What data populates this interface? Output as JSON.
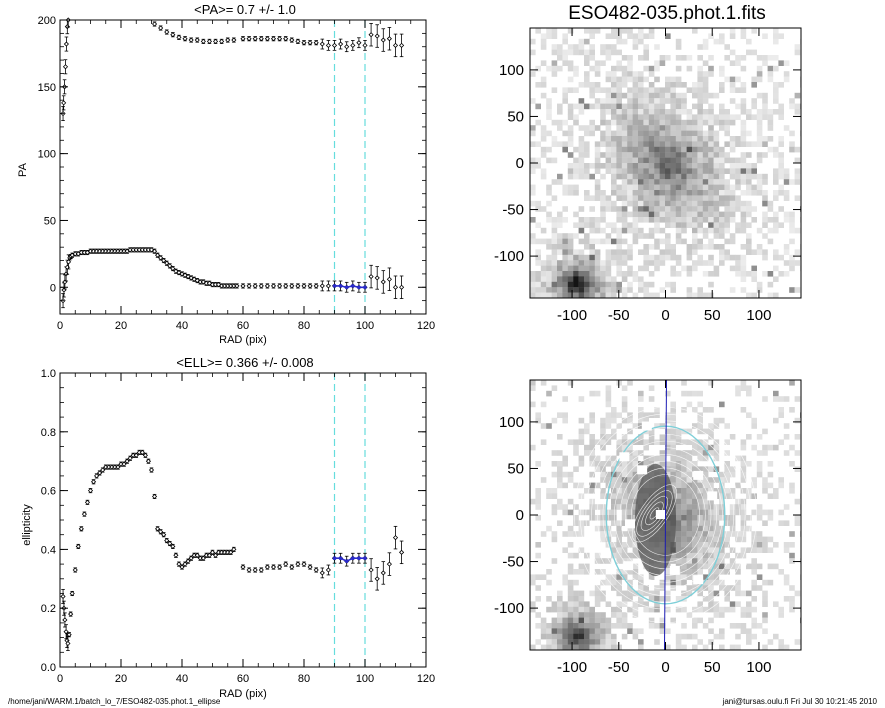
{
  "footer": {
    "path": "/home/jani/WARM.1/batch_lo_7/ESO482-035.phot.1_ellipse",
    "user_time": "jani@tursas.oulu.fi  Fri Jul 30 10:21:45 2010"
  },
  "colors": {
    "data": "#000000",
    "fit": "#2a2acc",
    "guide": "#66dddd",
    "ellipse": "#7ecfd8",
    "axis_line": "#1a1ab4"
  },
  "chart_data": [
    {
      "type": "scatter",
      "title": "<PA>=   0.7 +/-   1.0",
      "xlabel": "RAD (pix)",
      "ylabel": "PA",
      "xlim": [
        0,
        120
      ],
      "ylim": [
        -20,
        200
      ],
      "xticks": [
        "0",
        "20",
        "40",
        "60",
        "80",
        "100",
        "120"
      ],
      "yticks": [
        "0",
        "50",
        "100",
        "150",
        "200"
      ],
      "vlines": [
        90,
        100
      ],
      "series": [
        {
          "values": [
            [
              1.0,
              130
            ],
            [
              1.2,
              138
            ],
            [
              1.5,
              150
            ],
            [
              1.8,
              165
            ],
            [
              2.1,
              182
            ],
            [
              2.4,
              195
            ],
            [
              2.7,
              200
            ],
            [
              1.0,
              -10
            ],
            [
              1.3,
              -2
            ],
            [
              1.6,
              4
            ],
            [
              2.0,
              10
            ],
            [
              2.4,
              15
            ],
            [
              2.8,
              19
            ],
            [
              3.2,
              22
            ],
            [
              3.6,
              23
            ],
            [
              4,
              24
            ],
            [
              5,
              25
            ],
            [
              6,
              25
            ],
            [
              7,
              26
            ],
            [
              8,
              26
            ],
            [
              9,
              26
            ],
            [
              10,
              27
            ],
            [
              11,
              27
            ],
            [
              12,
              27
            ],
            [
              13,
              27
            ],
            [
              14,
              27
            ],
            [
              15,
              27
            ],
            [
              16,
              27
            ],
            [
              17,
              27
            ],
            [
              18,
              27
            ],
            [
              19,
              27
            ],
            [
              20,
              27
            ],
            [
              21,
              27
            ],
            [
              22,
              27
            ],
            [
              23,
              28
            ],
            [
              24,
              28
            ],
            [
              25,
              28
            ],
            [
              26,
              28
            ],
            [
              27,
              28
            ],
            [
              28,
              28
            ],
            [
              29,
              28
            ],
            [
              30,
              28
            ],
            [
              31,
              27
            ],
            [
              32,
              24
            ],
            [
              33,
              22
            ],
            [
              34,
              20
            ],
            [
              35,
              18
            ],
            [
              36,
              16
            ],
            [
              37,
              14
            ],
            [
              38,
              12
            ],
            [
              39,
              11
            ],
            [
              40,
              10
            ],
            [
              41,
              9
            ],
            [
              42,
              8
            ],
            [
              43,
              7
            ],
            [
              44,
              6
            ],
            [
              45,
              5
            ],
            [
              46,
              4
            ],
            [
              47,
              4
            ],
            [
              48,
              3
            ],
            [
              49,
              3
            ],
            [
              50,
              2
            ],
            [
              51,
              2
            ],
            [
              52,
              2
            ],
            [
              53,
              1
            ],
            [
              54,
              1
            ],
            [
              55,
              1
            ],
            [
              56,
              1
            ],
            [
              57,
              1
            ],
            [
              58,
              1
            ],
            [
              60,
              1
            ],
            [
              62,
              1
            ],
            [
              64,
              1
            ],
            [
              66,
              1
            ],
            [
              68,
              1
            ],
            [
              70,
              1
            ],
            [
              72,
              1
            ],
            [
              74,
              1
            ],
            [
              76,
              1
            ],
            [
              78,
              1
            ],
            [
              80,
              1
            ],
            [
              82,
              1
            ],
            [
              84,
              1
            ],
            [
              86,
              1
            ],
            [
              88,
              1
            ],
            [
              31,
              197
            ],
            [
              33,
              194
            ],
            [
              35,
              191
            ],
            [
              37,
              189
            ],
            [
              39,
              187
            ],
            [
              41,
              186
            ],
            [
              43,
              185
            ],
            [
              45,
              185
            ],
            [
              47,
              184
            ],
            [
              49,
              184
            ],
            [
              51,
              184
            ],
            [
              53,
              184
            ],
            [
              55,
              185
            ],
            [
              57,
              185
            ],
            [
              60,
              186
            ],
            [
              62,
              186
            ],
            [
              64,
              186
            ],
            [
              66,
              186
            ],
            [
              68,
              186
            ],
            [
              70,
              186
            ],
            [
              72,
              186
            ],
            [
              74,
              186
            ],
            [
              76,
              185
            ],
            [
              78,
              184
            ],
            [
              80,
              183
            ],
            [
              82,
              183
            ],
            [
              84,
              183
            ],
            [
              86,
              182
            ],
            [
              88,
              181
            ],
            [
              90,
              1
            ],
            [
              92,
              1
            ],
            [
              94,
              0
            ],
            [
              96,
              1
            ],
            [
              98,
              0
            ],
            [
              100,
              0
            ],
            [
              102,
              8
            ],
            [
              104,
              7
            ],
            [
              106,
              4
            ],
            [
              108,
              6
            ],
            [
              110,
              0
            ],
            [
              112,
              0
            ],
            [
              90,
              181
            ],
            [
              92,
              182
            ],
            [
              94,
              180
            ],
            [
              96,
              181
            ],
            [
              98,
              183
            ],
            [
              100,
              181
            ],
            [
              102,
              189
            ],
            [
              104,
              188
            ],
            [
              106,
              185
            ],
            [
              108,
              186
            ],
            [
              110,
              181
            ],
            [
              112,
              181
            ]
          ]
        }
      ],
      "fit_points": [
        [
          90,
          1
        ],
        [
          92,
          1
        ],
        [
          94,
          0
        ],
        [
          96,
          1
        ],
        [
          98,
          0
        ],
        [
          100,
          0
        ]
      ]
    },
    {
      "type": "scatter",
      "title": "<ELL>= 0.366 +/-  0.008",
      "xlabel": "RAD (pix)",
      "ylabel": "ellipticity",
      "xlim": [
        0,
        120
      ],
      "ylim": [
        0.0,
        1.0
      ],
      "xticks": [
        "0",
        "20",
        "40",
        "60",
        "80",
        "100",
        "120"
      ],
      "yticks": [
        "0.0",
        "0.2",
        "0.4",
        "0.6",
        "0.8",
        "1.0"
      ],
      "vlines": [
        90,
        100
      ],
      "series": [
        {
          "values": [
            [
              1.0,
              0.24
            ],
            [
              1.3,
              0.2
            ],
            [
              1.6,
              0.16
            ],
            [
              2.0,
              0.12
            ],
            [
              2.3,
              0.09
            ],
            [
              2.6,
              0.08
            ],
            [
              3.0,
              0.11
            ],
            [
              3.5,
              0.18
            ],
            [
              4.0,
              0.25
            ],
            [
              5,
              0.33
            ],
            [
              6,
              0.41
            ],
            [
              7,
              0.47
            ],
            [
              8,
              0.52
            ],
            [
              9,
              0.56
            ],
            [
              10,
              0.6
            ],
            [
              11,
              0.63
            ],
            [
              12,
              0.65
            ],
            [
              13,
              0.66
            ],
            [
              14,
              0.67
            ],
            [
              15,
              0.68
            ],
            [
              16,
              0.68
            ],
            [
              17,
              0.68
            ],
            [
              18,
              0.68
            ],
            [
              19,
              0.68
            ],
            [
              20,
              0.69
            ],
            [
              21,
              0.69
            ],
            [
              22,
              0.7
            ],
            [
              23,
              0.71
            ],
            [
              24,
              0.72
            ],
            [
              25,
              0.72
            ],
            [
              26,
              0.73
            ],
            [
              27,
              0.73
            ],
            [
              28,
              0.72
            ],
            [
              29,
              0.7
            ],
            [
              30,
              0.67
            ],
            [
              31,
              0.58
            ],
            [
              32,
              0.47
            ],
            [
              33,
              0.46
            ],
            [
              34,
              0.45
            ],
            [
              35,
              0.43
            ],
            [
              36,
              0.42
            ],
            [
              37,
              0.41
            ],
            [
              38,
              0.38
            ],
            [
              39,
              0.35
            ],
            [
              40,
              0.34
            ],
            [
              41,
              0.35
            ],
            [
              42,
              0.36
            ],
            [
              43,
              0.37
            ],
            [
              44,
              0.38
            ],
            [
              45,
              0.38
            ],
            [
              46,
              0.37
            ],
            [
              47,
              0.37
            ],
            [
              48,
              0.38
            ],
            [
              49,
              0.38
            ],
            [
              50,
              0.39
            ],
            [
              51,
              0.38
            ],
            [
              52,
              0.39
            ],
            [
              53,
              0.39
            ],
            [
              54,
              0.39
            ],
            [
              55,
              0.39
            ],
            [
              56,
              0.39
            ],
            [
              57,
              0.4
            ],
            [
              60,
              0.34
            ],
            [
              62,
              0.33
            ],
            [
              64,
              0.33
            ],
            [
              66,
              0.33
            ],
            [
              68,
              0.34
            ],
            [
              70,
              0.34
            ],
            [
              72,
              0.34
            ],
            [
              74,
              0.35
            ],
            [
              76,
              0.34
            ],
            [
              78,
              0.35
            ],
            [
              80,
              0.35
            ],
            [
              82,
              0.34
            ],
            [
              84,
              0.33
            ],
            [
              86,
              0.32
            ],
            [
              88,
              0.33
            ],
            [
              90,
              0.37
            ],
            [
              92,
              0.37
            ],
            [
              94,
              0.36
            ],
            [
              96,
              0.37
            ],
            [
              98,
              0.37
            ],
            [
              100,
              0.37
            ],
            [
              102,
              0.33
            ],
            [
              104,
              0.3
            ],
            [
              106,
              0.32
            ],
            [
              108,
              0.35
            ],
            [
              110,
              0.44
            ],
            [
              112,
              0.39
            ]
          ]
        }
      ],
      "fit_points": [
        [
          90,
          0.37
        ],
        [
          92,
          0.37
        ],
        [
          94,
          0.36
        ],
        [
          96,
          0.37
        ],
        [
          98,
          0.37
        ],
        [
          100,
          0.37
        ]
      ]
    },
    {
      "type": "heatmap",
      "title": "ESO482-035.phot.1.fits",
      "xticks": [
        "-100",
        "-50",
        "0",
        "50",
        "100"
      ],
      "yticks": [
        "-100",
        "-50",
        "0",
        "50",
        "100"
      ],
      "xlim": [
        -145,
        145
      ],
      "ylim": [
        -145,
        145
      ]
    },
    {
      "type": "heatmap",
      "title": "",
      "xticks": [
        "-100",
        "-50",
        "0",
        "50",
        "100"
      ],
      "yticks": [
        "-100",
        "-50",
        "0",
        "50",
        "100"
      ],
      "xlim": [
        -145,
        145
      ],
      "ylim": [
        -145,
        145
      ],
      "isophote_pa_deg": 0.7,
      "isophote_ellipticity": 0.366,
      "isophote_outer_radius": 100
    }
  ]
}
